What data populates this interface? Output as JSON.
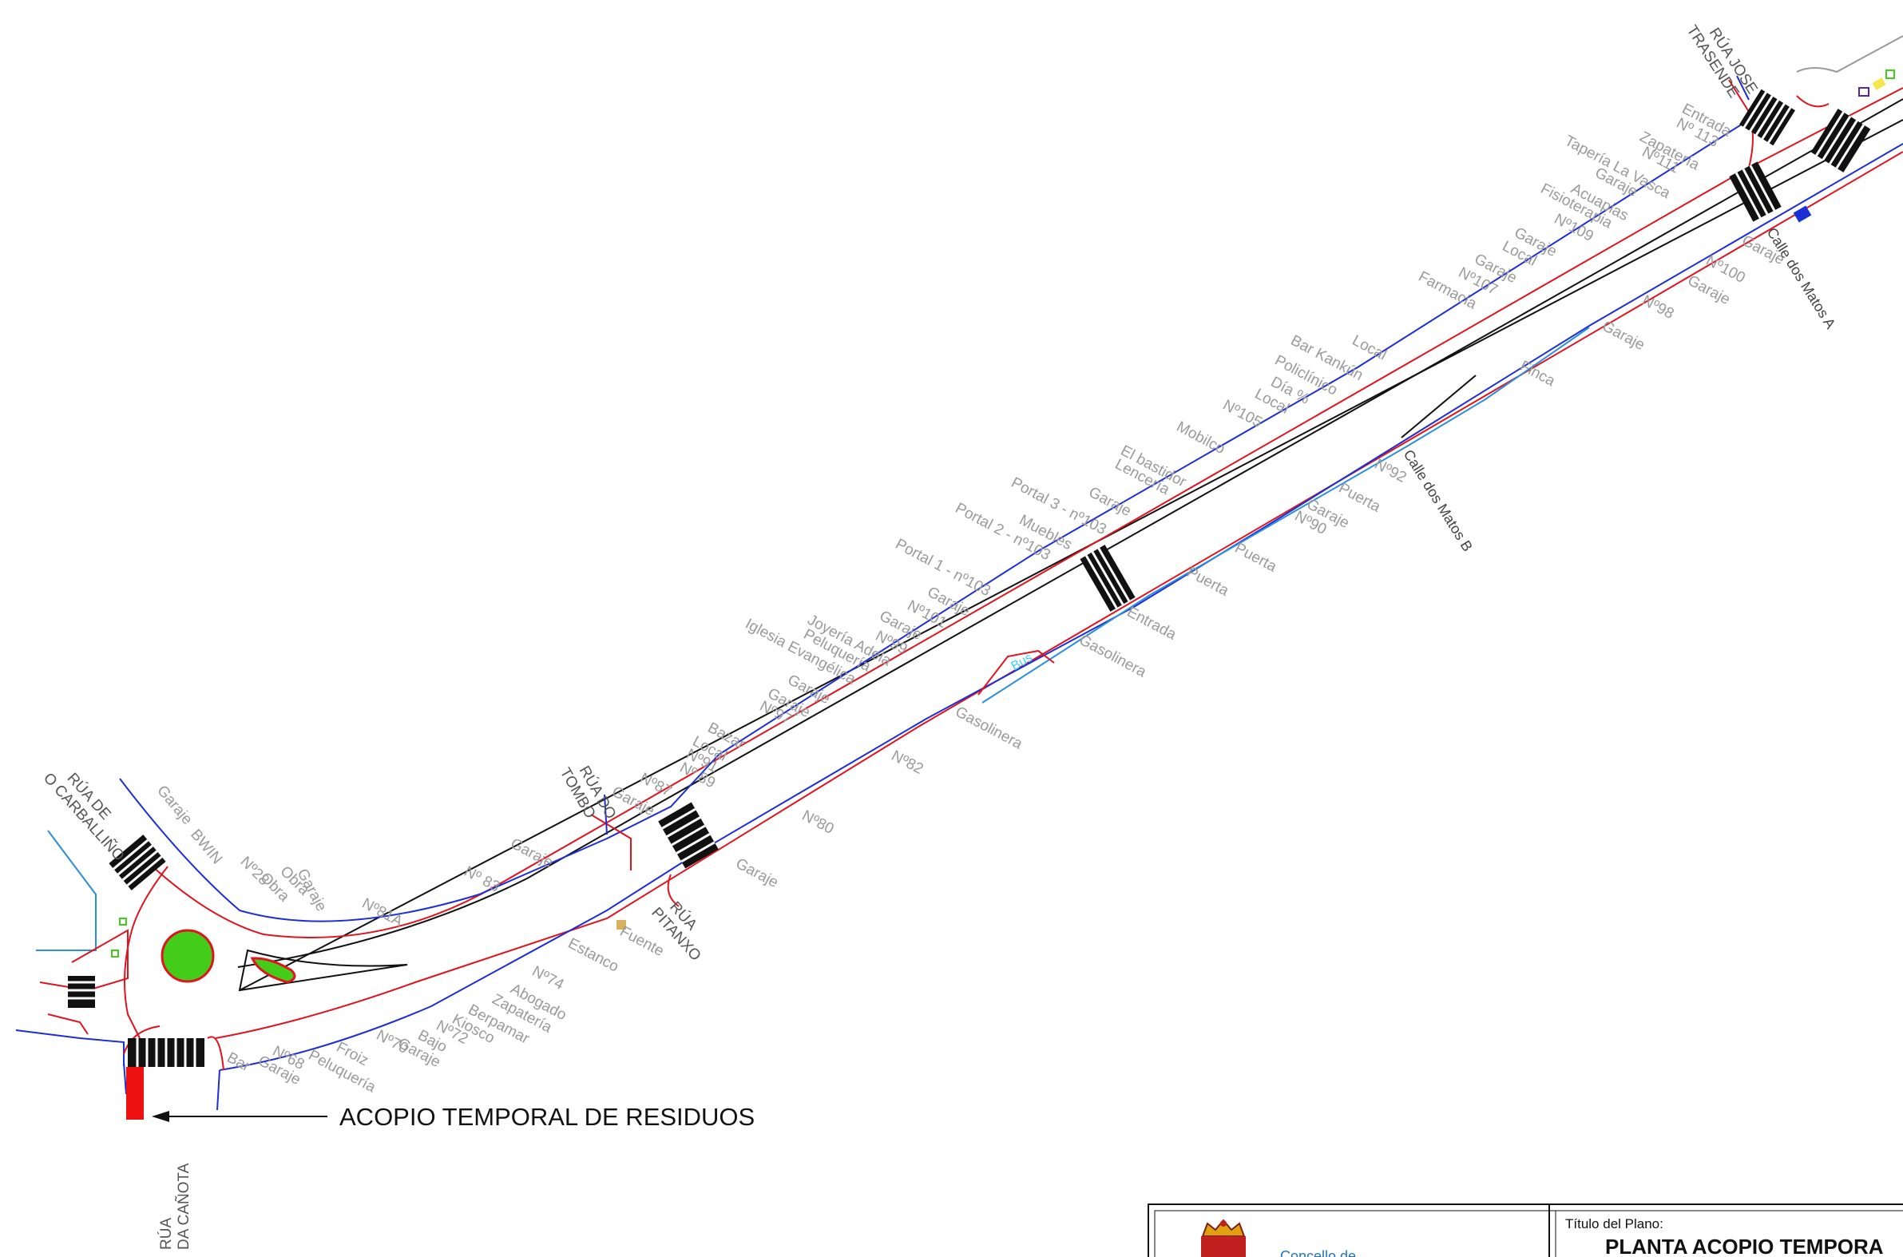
{
  "streets": {
    "jose_trasende": [
      "RÚA JOSE",
      "TRASENDE"
    ],
    "carballino": [
      "RÚA DE",
      "O CARBALLIÑO"
    ],
    "tombo": [
      "RÚA DO",
      "TOMBO"
    ],
    "pitanxo": [
      "RÚA",
      "PITANXO"
    ],
    "canota": [
      "RÚA",
      "DA CAÑOTA"
    ],
    "matos_a": "Calle dos Matos A",
    "matos_b": "Calle dos Matos B"
  },
  "annotation": "ACOPIO TEMPORAL DE RESIDUOS",
  "north_labels": [
    "Entrada",
    "Nº 113",
    "Zapatería",
    "Nº111",
    "Tapería La Vasca",
    "Garaje",
    "Acuapias",
    "Fisioterapia",
    "Nº109",
    "Garaje",
    "Local",
    "Garaje",
    "Nº107",
    "Farmacia",
    "Local",
    "Bar Kankún",
    "Policlínico",
    "Día %",
    "Local",
    "Nº105",
    "Mobilco",
    "El bastidor",
    "Lencería",
    "Garaje",
    "Portal 3 - nº103",
    "Muebles",
    "Portal 2 - nº103",
    "Portal 1 - nº103",
    "Garaje",
    "Nº101",
    "Garaje",
    "Joyería Adela",
    "Nº99",
    "Peluquería",
    "Iglesia Evangélica",
    "Garaje",
    "Garaje",
    "Nº97",
    "Bazar",
    "Local",
    "Nº91",
    "Nº 89",
    "Nº87",
    "Garaje",
    "Nº 83",
    "Garaje",
    "Nº81A",
    "Garaje",
    "Obra",
    "Obra",
    "Nº28",
    "BWIN",
    "Garaje"
  ],
  "south_labels": [
    "Nº100",
    "Garaje",
    "Garaje",
    "Nº98",
    "Garaje",
    "Finca",
    "Nº92",
    "Puerta",
    "Garaje",
    "Nº90",
    "Puerta",
    "Puerta",
    "Entrada",
    "Gasolinera",
    "Bus",
    "Gasolinera",
    "Nº82",
    "Nº80",
    "Garaje",
    "Fuente",
    "Estanco",
    "Nº74",
    "Abogado",
    "Zapatería",
    "Berpamar",
    "Kiosco",
    "Nº72",
    "Bajo",
    "Garaje",
    "Nº70",
    "Froiz",
    "Peluquería",
    "Nº68",
    "Garaje",
    "Bar"
  ],
  "title_block": {
    "plan_title_label": "Título del Plano:",
    "plan_title": "PLANTA ACOPIO TEMPORA",
    "council": "Concello de"
  },
  "colors": {
    "curb": "#e0141e",
    "facade": "#1c2fd6",
    "facade_light": "#2a8fe0",
    "axis": "#111111",
    "green_island": "#44cc1a",
    "waste_area": "#ee1111",
    "label_grey": "#9a9a9a"
  }
}
